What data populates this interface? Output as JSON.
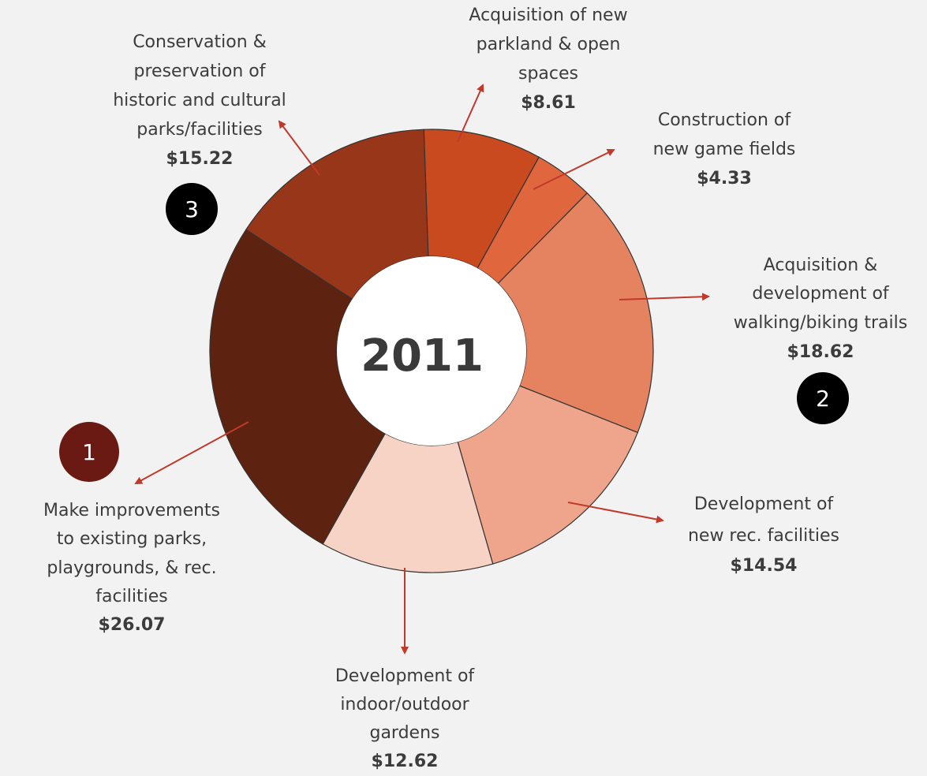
{
  "chart_data": {
    "type": "donut",
    "center_label": "2011",
    "categories": [
      [
        "Acquisition of new",
        "parkland & open",
        "spaces"
      ],
      [
        "Construction of",
        "new game fields"
      ],
      [
        "Acquisition &",
        "development of",
        "walking/biking trails"
      ],
      [
        "Development of",
        "new rec. facilities"
      ],
      [
        "Development of",
        "indoor/outdoor",
        "gardens"
      ],
      [
        "Make improvements",
        "to existing parks,",
        "playgrounds, & rec.",
        "facilities"
      ],
      [
        "Conservation &",
        "preservation of",
        "historic and cultural",
        "parks/facilities"
      ]
    ],
    "values": [
      8.61,
      4.33,
      18.62,
      14.54,
      12.62,
      26.07,
      15.22
    ],
    "value_labels": [
      "$8.61",
      "$4.33",
      "$18.62",
      "$14.54",
      "$12.62",
      "$26.07",
      "$15.22"
    ],
    "colors": [
      "#c94a1f",
      "#e0663d",
      "#e5825f",
      "#eea58c",
      "#f7d3c6",
      "#5e2210",
      "#98361a"
    ],
    "arrow_color": "#c0392b",
    "badges": [
      {
        "label": 1,
        "color": "#6b1a13"
      },
      {
        "label": 2,
        "color": "#000000"
      },
      {
        "label": 3,
        "color": "#000000"
      }
    ]
  }
}
